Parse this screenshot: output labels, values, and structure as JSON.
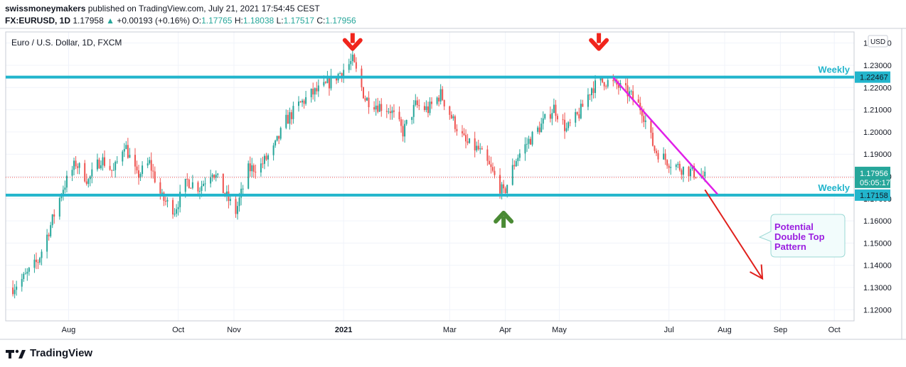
{
  "header": {
    "publisher": "swissmoneymakers",
    "published_text": "published on TradingView.com, July 21, 2021 17:54:45 CEST",
    "symbol": "FX:EURUSD, 1D",
    "last": "1.17958",
    "change": "+0.00193 (+0.16%)",
    "o_label": "O:",
    "o": "1.17765",
    "h_label": "H:",
    "h": "1.18038",
    "l_label": "L:",
    "l": "1.17517",
    "c_label": "C:",
    "c": "1.17956"
  },
  "footer": {
    "brand": "TradingView"
  },
  "chart_data": {
    "type": "candlestick",
    "title": "Euro / U.S. Dollar, 1D, FXCM",
    "currency": "USD",
    "ylim": [
      1.115,
      1.245
    ],
    "y_ticks": [
      1.24,
      1.23,
      1.22,
      1.21,
      1.2,
      1.19,
      1.18,
      1.17,
      1.16,
      1.15,
      1.14,
      1.13,
      1.12
    ],
    "y_tick_labels": [
      "1.24000",
      "1.23000",
      "1.22000",
      "1.21000",
      "1.20000",
      "1.19000",
      "1.18000",
      "1.17000",
      "1.16000",
      "1.15000",
      "1.14000",
      "1.13000",
      "1.12000"
    ],
    "x_labels": [
      "Aug",
      "Oct",
      "Nov",
      "2021",
      "Mar",
      "Apr",
      "May",
      "Jul",
      "Aug",
      "Sep",
      "Oct"
    ],
    "x_label_dates": [
      "2020-08-01",
      "2020-10-01",
      "2020-11-01",
      "2021-01-01",
      "2021-03-01",
      "2021-04-01",
      "2021-05-01",
      "2021-07-01",
      "2021-08-01",
      "2021-09-01",
      "2021-10-01"
    ],
    "up_color": "#26a69a",
    "down_color": "#ef5350",
    "close_path": [
      [
        "2020-07-01",
        1.13
      ],
      [
        "2020-07-08",
        1.135
      ],
      [
        "2020-07-15",
        1.142
      ],
      [
        "2020-07-22",
        1.158
      ],
      [
        "2020-07-29",
        1.175
      ],
      [
        "2020-08-05",
        1.186
      ],
      [
        "2020-08-12",
        1.178
      ],
      [
        "2020-08-19",
        1.188
      ],
      [
        "2020-08-26",
        1.182
      ],
      [
        "2020-09-01",
        1.195
      ],
      [
        "2020-09-08",
        1.18
      ],
      [
        "2020-09-15",
        1.186
      ],
      [
        "2020-09-22",
        1.17
      ],
      [
        "2020-09-29",
        1.165
      ],
      [
        "2020-10-06",
        1.178
      ],
      [
        "2020-10-13",
        1.175
      ],
      [
        "2020-10-20",
        1.183
      ],
      [
        "2020-10-27",
        1.172
      ],
      [
        "2020-11-02",
        1.164
      ],
      [
        "2020-11-09",
        1.183
      ],
      [
        "2020-11-16",
        1.185
      ],
      [
        "2020-11-23",
        1.192
      ],
      [
        "2020-11-30",
        1.205
      ],
      [
        "2020-12-07",
        1.212
      ],
      [
        "2020-12-14",
        1.217
      ],
      [
        "2020-12-21",
        1.22
      ],
      [
        "2020-12-28",
        1.225
      ],
      [
        "2021-01-06",
        1.232
      ],
      [
        "2021-01-13",
        1.215
      ],
      [
        "2021-01-20",
        1.212
      ],
      [
        "2021-01-27",
        1.21
      ],
      [
        "2021-02-03",
        1.2
      ],
      [
        "2021-02-10",
        1.212
      ],
      [
        "2021-02-17",
        1.21
      ],
      [
        "2021-02-24",
        1.217
      ],
      [
        "2021-03-03",
        1.205
      ],
      [
        "2021-03-10",
        1.195
      ],
      [
        "2021-03-17",
        1.192
      ],
      [
        "2021-03-24",
        1.183
      ],
      [
        "2021-03-31",
        1.172
      ],
      [
        "2021-04-07",
        1.188
      ],
      [
        "2021-04-14",
        1.196
      ],
      [
        "2021-04-21",
        1.203
      ],
      [
        "2021-04-28",
        1.211
      ],
      [
        "2021-05-05",
        1.201
      ],
      [
        "2021-05-12",
        1.208
      ],
      [
        "2021-05-19",
        1.22
      ],
      [
        "2021-05-26",
        1.223
      ],
      [
        "2021-06-02",
        1.221
      ],
      [
        "2021-06-09",
        1.217
      ],
      [
        "2021-06-16",
        1.21
      ],
      [
        "2021-06-23",
        1.192
      ],
      [
        "2021-06-30",
        1.187
      ],
      [
        "2021-07-07",
        1.184
      ],
      [
        "2021-07-14",
        1.182
      ],
      [
        "2021-07-21",
        1.1796
      ]
    ],
    "last_price_label": "1.17956",
    "countdown_label": "05:05:17",
    "levels": [
      {
        "price": 1.22467,
        "label": "Weekly",
        "price_label": "1.22467",
        "color": "#22b5cc"
      },
      {
        "price": 1.17158,
        "label": "Weekly",
        "price_label": "1.17158",
        "color": "#22b5cc"
      }
    ],
    "trendline": {
      "from": [
        "2021-05-31",
        1.2245
      ],
      "to": [
        "2021-07-28",
        1.172
      ],
      "color": "#e020e8"
    },
    "projection": {
      "from": [
        "2021-07-21",
        1.174
      ],
      "to": [
        "2021-08-22",
        1.134
      ],
      "color": "#e0201c"
    },
    "markers": [
      {
        "type": "down-arrow",
        "date": "2021-01-06",
        "price": 1.24,
        "color": "#f0241c"
      },
      {
        "type": "down-arrow",
        "date": "2021-05-23",
        "price": 1.24,
        "color": "#f0241c"
      },
      {
        "type": "up-arrow",
        "date": "2021-03-31",
        "price": 1.162,
        "color": "#4a8a34"
      }
    ],
    "annotation": {
      "text_lines": [
        "Potential",
        "Double Top",
        "Pattern"
      ],
      "text_color": "#9b1ee0",
      "fill": "#f2fcfc",
      "border": "#9bd8d4"
    }
  }
}
